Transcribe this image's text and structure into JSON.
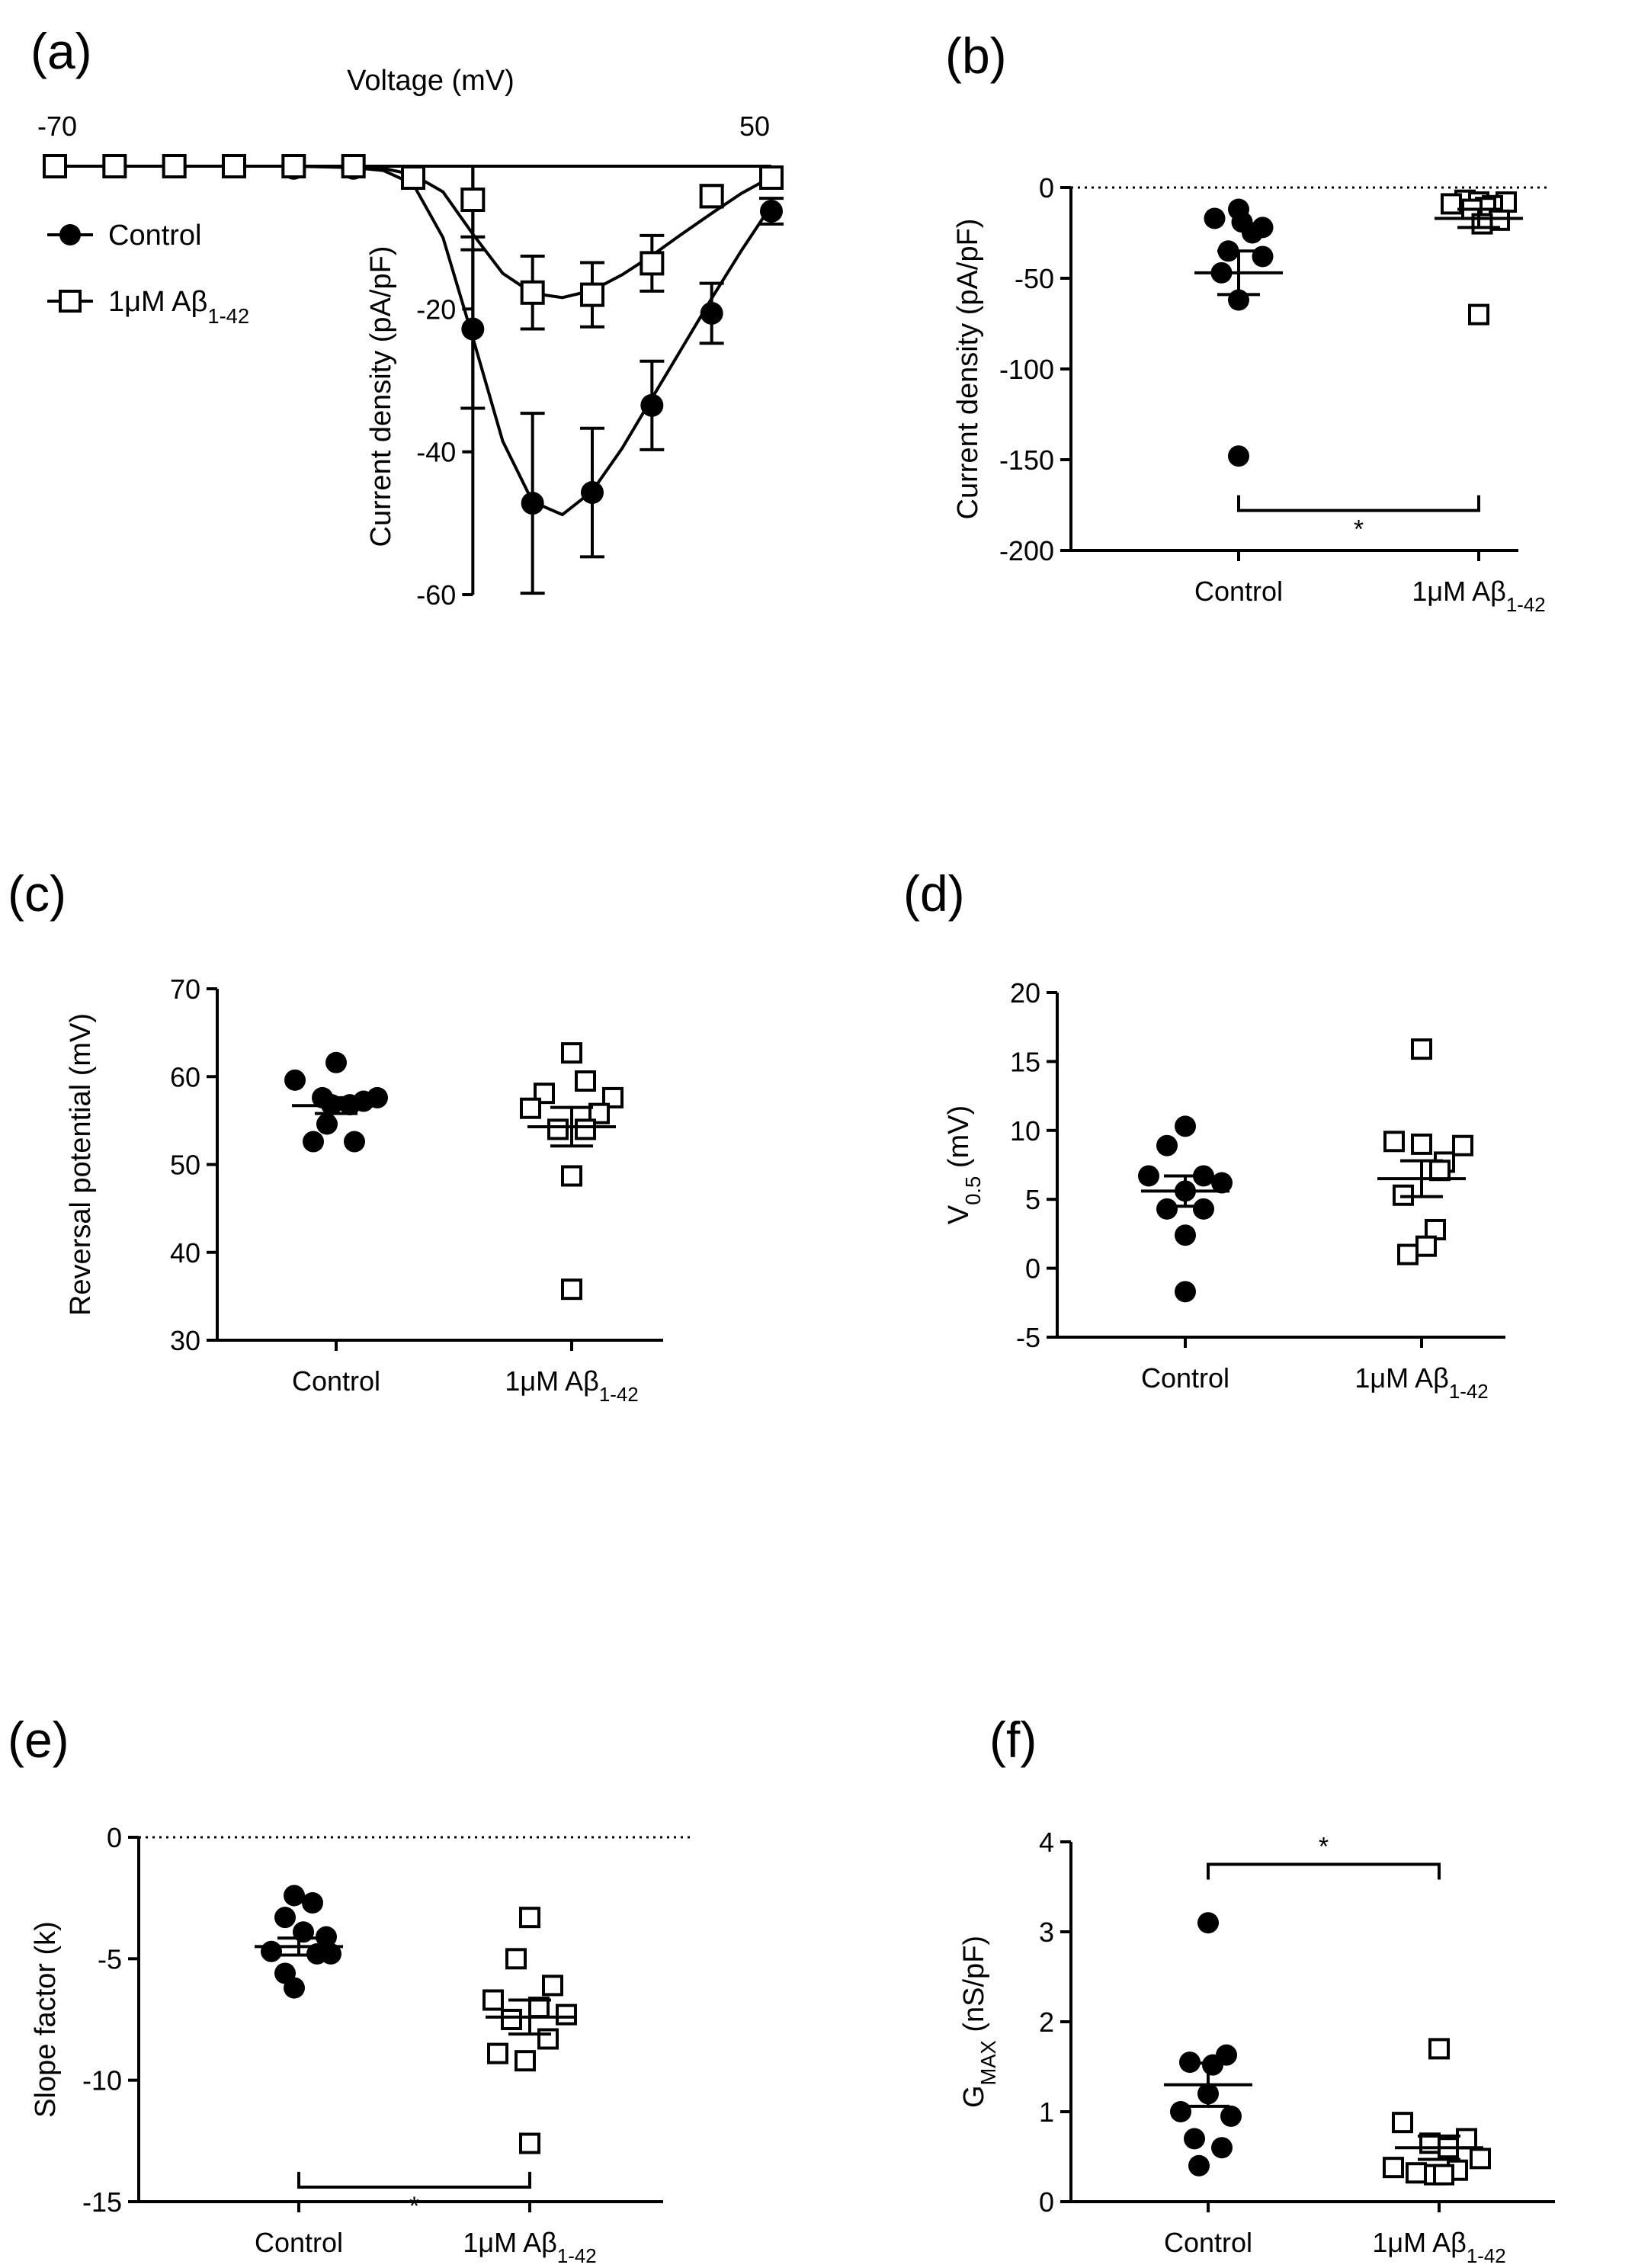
{
  "figure": {
    "colors": {
      "ink": "#000000",
      "background": "#ffffff",
      "open_fill": "#ffffff"
    },
    "groups": {
      "control": "Control",
      "abeta_prefix": "1μM Aβ",
      "abeta_sub": "1-42"
    },
    "significance_label": "*"
  },
  "chart_data": [
    {
      "id": "a",
      "panel_label": "(a)",
      "type": "line",
      "title": "",
      "xlabel": "Voltage (mV)",
      "ylabel": "Current density (pA/pF)",
      "xlim": [
        -70,
        50
      ],
      "ylim": [
        -60,
        0
      ],
      "x_ticks_shown": [
        "-70",
        "50"
      ],
      "y_ticks": [
        -20,
        -40,
        -60
      ],
      "y_tick_labels": [
        "-20",
        "-40",
        "-60"
      ],
      "legend": {
        "placement": "top-left",
        "entries": [
          {
            "label_main": "Control",
            "label_sub": "",
            "marker": "filled-circle"
          },
          {
            "label_main": "1μM Aβ",
            "label_sub": "1-42",
            "marker": "open-square"
          }
        ]
      },
      "x": [
        -70,
        -60,
        -50,
        -40,
        -30,
        -20,
        -10,
        0,
        10,
        20,
        30,
        40,
        50
      ],
      "series": [
        {
          "name": "Control",
          "marker": "filled-circle",
          "values": [
            0,
            0,
            0,
            0,
            -0.3,
            -0.3,
            -1.6,
            -22.8,
            -47.2,
            -45.7,
            -33.5,
            -20.6,
            -6.3
          ],
          "sem": [
            0.2,
            0.2,
            0.2,
            0.2,
            0.3,
            0.3,
            0.6,
            11.1,
            12.6,
            9.0,
            6.2,
            4.2,
            1.8
          ]
        },
        {
          "name": "1μM Aβ1-42",
          "marker": "open-square",
          "values": [
            0,
            0,
            0,
            0,
            0,
            0,
            -1.6,
            -4.7,
            -17.7,
            -18.0,
            -13.6,
            -4.2,
            -1.6
          ],
          "sem": [
            0.1,
            0.1,
            0.1,
            0.1,
            0.1,
            0.1,
            0.3,
            5.2,
            5.1,
            4.5,
            3.9,
            1.5,
            0.5
          ]
        }
      ],
      "fits": [
        {
          "name": "Control fit",
          "x": [
            -70,
            -50,
            -30,
            -20,
            -15,
            -10,
            -5,
            0,
            5,
            10,
            15,
            20,
            25,
            30,
            35,
            40,
            45,
            50
          ],
          "y": [
            0,
            0,
            0,
            -0.2,
            -0.6,
            -2.5,
            -10,
            -24,
            -38.5,
            -47,
            -48.8,
            -45.5,
            -39.5,
            -32.5,
            -25.5,
            -18.5,
            -11.8,
            -5.5
          ]
        },
        {
          "name": "1μM Aβ1-42 fit",
          "x": [
            -70,
            -50,
            -30,
            -20,
            -15,
            -10,
            -5,
            0,
            5,
            10,
            15,
            20,
            25,
            30,
            35,
            40,
            45,
            50
          ],
          "y": [
            0,
            0,
            0,
            -0.1,
            -0.3,
            -1.2,
            -3.6,
            -9.5,
            -15.0,
            -17.8,
            -18.4,
            -17.4,
            -15.2,
            -12.5,
            -9.5,
            -6.6,
            -3.8,
            -1.5
          ]
        }
      ]
    },
    {
      "id": "b",
      "panel_label": "(b)",
      "type": "scatter",
      "ylabel": "Current density (pA/pF)",
      "ylim": [
        -200,
        0
      ],
      "y_ticks": [
        0,
        -50,
        -100,
        -150,
        -200
      ],
      "y_tick_labels": [
        "0",
        "-50",
        "-100",
        "-150",
        "-200"
      ],
      "zero_line": true,
      "significance": {
        "between": [
          "Control",
          "1μM Aβ1-42"
        ],
        "label": "*",
        "y": -178
      },
      "groups": [
        {
          "name": "Control",
          "marker": "filled-circle",
          "mean": -47,
          "sem": 12,
          "points": [
            -12,
            -17,
            -22,
            -19,
            -25,
            -35,
            -38,
            -47,
            -62,
            -148
          ],
          "offsets": [
            0,
            -0.7,
            0.7,
            0.1,
            0.4,
            -0.3,
            0.7,
            -0.5,
            0,
            0
          ]
        },
        {
          "name": "1μM Aβ1-42",
          "marker": "open-square",
          "mean": -17,
          "sem": 5,
          "points": [
            -7,
            -8,
            -8,
            -9,
            -10,
            -11,
            -12,
            -18,
            -20,
            -70
          ],
          "offsets": [
            -0.4,
            0,
            0.8,
            -0.8,
            0.4,
            0.2,
            -0.2,
            0.6,
            0.1,
            0
          ]
        }
      ]
    },
    {
      "id": "c",
      "panel_label": "(c)",
      "type": "scatter",
      "ylabel": "Reversal potential (mV)",
      "ylim": [
        30,
        70
      ],
      "y_ticks": [
        30,
        40,
        50,
        60,
        70
      ],
      "y_tick_labels": [
        "30",
        "40",
        "50",
        "60",
        "70"
      ],
      "zero_line": false,
      "groups": [
        {
          "name": "Control",
          "marker": "filled-circle",
          "mean": 56.7,
          "sem": 0.9,
          "points": [
            61.6,
            59.6,
            57.6,
            57.6,
            57.2,
            56.8,
            56.8,
            54.6,
            52.6,
            52.6
          ],
          "offsets": [
            0,
            -0.9,
            -0.3,
            0.9,
            0.6,
            -0.1,
            0.3,
            -0.2,
            -0.5,
            0.4
          ]
        },
        {
          "name": "1μM Aβ1-42",
          "marker": "open-square",
          "mean": 54.3,
          "sem": 2.2,
          "points": [
            62.7,
            59.5,
            58.1,
            57.6,
            56.4,
            55.8,
            54.0,
            54.0,
            48.7,
            35.8
          ],
          "offsets": [
            0,
            0.3,
            -0.6,
            0.9,
            -0.9,
            0.6,
            -0.3,
            0.3,
            0,
            0
          ]
        }
      ]
    },
    {
      "id": "d",
      "panel_label": "(d)",
      "type": "scatter",
      "ylabel_main": "V",
      "ylabel_sub": "0.5",
      "ylabel_tail": " (mV)",
      "ylim": [
        -5,
        20
      ],
      "y_ticks": [
        -5,
        0,
        5,
        10,
        15,
        20
      ],
      "y_tick_labels": [
        "-5",
        "0",
        "5",
        "10",
        "15",
        "20"
      ],
      "zero_line": false,
      "groups": [
        {
          "name": "Control",
          "marker": "filled-circle",
          "mean": 5.6,
          "sem": 1.1,
          "points": [
            10.3,
            8.9,
            6.7,
            6.7,
            6.2,
            5.6,
            4.3,
            4.3,
            2.4,
            -1.7
          ],
          "offsets": [
            0,
            -0.4,
            0.4,
            -0.8,
            0.8,
            0,
            -0.4,
            0.4,
            0,
            0
          ]
        },
        {
          "name": "1μM Aβ1-42",
          "marker": "open-square",
          "mean": 6.5,
          "sem": 1.3,
          "points": [
            15.9,
            9.2,
            9.0,
            8.9,
            7.7,
            7.1,
            5.3,
            2.8,
            1.6,
            1.0
          ],
          "offsets": [
            0,
            -0.6,
            0,
            0.9,
            0.5,
            0.4,
            -0.4,
            0.3,
            0.1,
            -0.3
          ]
        }
      ]
    },
    {
      "id": "e",
      "panel_label": "(e)",
      "type": "scatter",
      "ylabel": "Slope factor (k)",
      "ylim": [
        -15,
        0
      ],
      "y_ticks": [
        0,
        -5,
        -10,
        -15
      ],
      "y_tick_labels": [
        "0",
        "-5",
        "-10",
        "-15"
      ],
      "zero_line": true,
      "significance": {
        "between": [
          "Control",
          "1μM Aβ1-42"
        ],
        "label": "*",
        "y": -14.4
      },
      "groups": [
        {
          "name": "Control",
          "marker": "filled-circle",
          "mean": -4.5,
          "sem": 0.35,
          "points": [
            -2.4,
            -2.7,
            -3.3,
            -3.9,
            -4.1,
            -4.7,
            -4.8,
            -4.8,
            -5.6,
            -6.2
          ],
          "offsets": [
            -0.1,
            0.3,
            -0.3,
            0.1,
            0.6,
            -0.6,
            0.4,
            0.7,
            -0.3,
            -0.1
          ]
        },
        {
          "name": "1μM Aβ1-42",
          "marker": "open-square",
          "mean": -7.4,
          "sem": 0.7,
          "points": [
            -3.3,
            -5.0,
            -6.1,
            -6.7,
            -7.0,
            -7.3,
            -7.5,
            -8.3,
            -8.9,
            -9.2,
            -12.6
          ],
          "offsets": [
            0,
            -0.3,
            0.5,
            -0.8,
            0.2,
            0.8,
            -0.4,
            0.4,
            -0.7,
            -0.1,
            0
          ]
        }
      ]
    },
    {
      "id": "f",
      "panel_label": "(f)",
      "type": "scatter",
      "ylabel_main": "G",
      "ylabel_sub": "MAX",
      "ylabel_tail": " (nS/pF)",
      "ylim": [
        0,
        4
      ],
      "y_ticks": [
        0,
        1,
        2,
        3,
        4
      ],
      "y_tick_labels": [
        "0",
        "1",
        "2",
        "3",
        "4"
      ],
      "zero_line": false,
      "significance": {
        "between": [
          "Control",
          "1μM Aβ1-42"
        ],
        "label": "*",
        "y": 3.75
      },
      "groups": [
        {
          "name": "Control",
          "marker": "filled-circle",
          "mean": 1.3,
          "sem": 0.24,
          "points": [
            3.1,
            1.63,
            1.55,
            1.52,
            1.2,
            1.0,
            0.95,
            0.7,
            0.6,
            0.4
          ],
          "offsets": [
            0,
            0.4,
            -0.4,
            0.1,
            0,
            -0.6,
            0.5,
            -0.3,
            0.3,
            -0.2
          ]
        },
        {
          "name": "1μM Aβ1-42",
          "marker": "open-square",
          "mean": 0.6,
          "sem": 0.13,
          "points": [
            1.7,
            0.88,
            0.7,
            0.65,
            0.6,
            0.48,
            0.38,
            0.35,
            0.32,
            0.3,
            0.3
          ],
          "offsets": [
            0,
            -0.8,
            0.6,
            -0.2,
            0.2,
            0.9,
            -1.0,
            0.4,
            -0.5,
            -0.1,
            0.1
          ]
        }
      ]
    }
  ]
}
